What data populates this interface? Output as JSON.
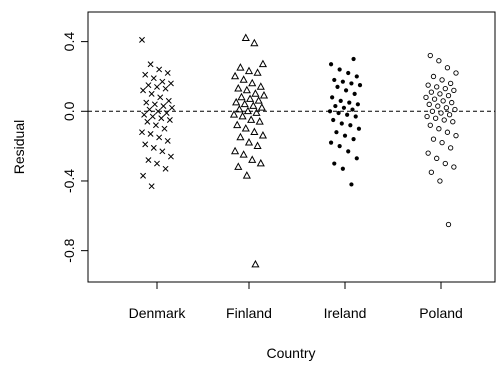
{
  "chart_data": {
    "type": "scatter",
    "title": "",
    "xlabel": "Country",
    "ylabel": "Residual",
    "categories": [
      "Denmark",
      "Finland",
      "Ireland",
      "Poland"
    ],
    "ylim": [
      -0.98,
      0.57
    ],
    "yticks": [
      {
        "value": 0.4,
        "label": "0.4"
      },
      {
        "value": 0.0,
        "label": "0.0"
      },
      {
        "value": -0.4,
        "label": "-0.4"
      },
      {
        "value": -0.8,
        "label": "-0.8"
      }
    ],
    "reference_line": {
      "y": 0.0,
      "style": "dashed"
    },
    "grid": false,
    "series": [
      {
        "category": "Denmark",
        "marker": "x",
        "values": [
          0.41,
          0.27,
          0.24,
          0.22,
          0.21,
          0.19,
          0.17,
          0.16,
          0.15,
          0.14,
          0.13,
          0.12,
          0.1,
          0.08,
          0.06,
          0.05,
          0.04,
          0.03,
          0.02,
          0.01,
          0.0,
          -0.01,
          -0.02,
          -0.03,
          -0.04,
          -0.05,
          -0.06,
          -0.08,
          -0.1,
          -0.12,
          -0.13,
          -0.15,
          -0.17,
          -0.19,
          -0.21,
          -0.23,
          -0.26,
          -0.28,
          -0.3,
          -0.33,
          -0.37,
          -0.43
        ]
      },
      {
        "category": "Finland",
        "marker": "triangle",
        "values": [
          0.42,
          0.39,
          0.27,
          0.25,
          0.23,
          0.22,
          0.2,
          0.18,
          0.16,
          0.14,
          0.13,
          0.12,
          0.1,
          0.09,
          0.08,
          0.07,
          0.06,
          0.05,
          0.04,
          0.03,
          0.02,
          0.01,
          0.0,
          -0.01,
          -0.02,
          -0.03,
          -0.05,
          -0.06,
          -0.08,
          -0.1,
          -0.12,
          -0.14,
          -0.15,
          -0.18,
          -0.2,
          -0.23,
          -0.25,
          -0.28,
          -0.3,
          -0.32,
          -0.37,
          -0.88
        ]
      },
      {
        "category": "Ireland",
        "marker": "filled-circle",
        "values": [
          0.3,
          0.27,
          0.24,
          0.22,
          0.2,
          0.18,
          0.17,
          0.16,
          0.15,
          0.14,
          0.12,
          0.1,
          0.08,
          0.06,
          0.05,
          0.04,
          0.03,
          0.02,
          0.01,
          0.0,
          -0.01,
          -0.02,
          -0.03,
          -0.05,
          -0.07,
          -0.08,
          -0.1,
          -0.12,
          -0.14,
          -0.16,
          -0.18,
          -0.2,
          -0.23,
          -0.27,
          -0.3,
          -0.33,
          -0.42
        ]
      },
      {
        "category": "Poland",
        "marker": "open-circle",
        "values": [
          0.32,
          0.29,
          0.25,
          0.22,
          0.2,
          0.18,
          0.16,
          0.15,
          0.14,
          0.13,
          0.12,
          0.11,
          0.1,
          0.09,
          0.08,
          0.07,
          0.06,
          0.05,
          0.04,
          0.03,
          0.02,
          0.01,
          0.0,
          -0.01,
          -0.02,
          -0.03,
          -0.04,
          -0.05,
          -0.06,
          -0.08,
          -0.1,
          -0.12,
          -0.14,
          -0.16,
          -0.18,
          -0.21,
          -0.24,
          -0.27,
          -0.3,
          -0.32,
          -0.35,
          -0.4,
          -0.65
        ]
      }
    ]
  }
}
